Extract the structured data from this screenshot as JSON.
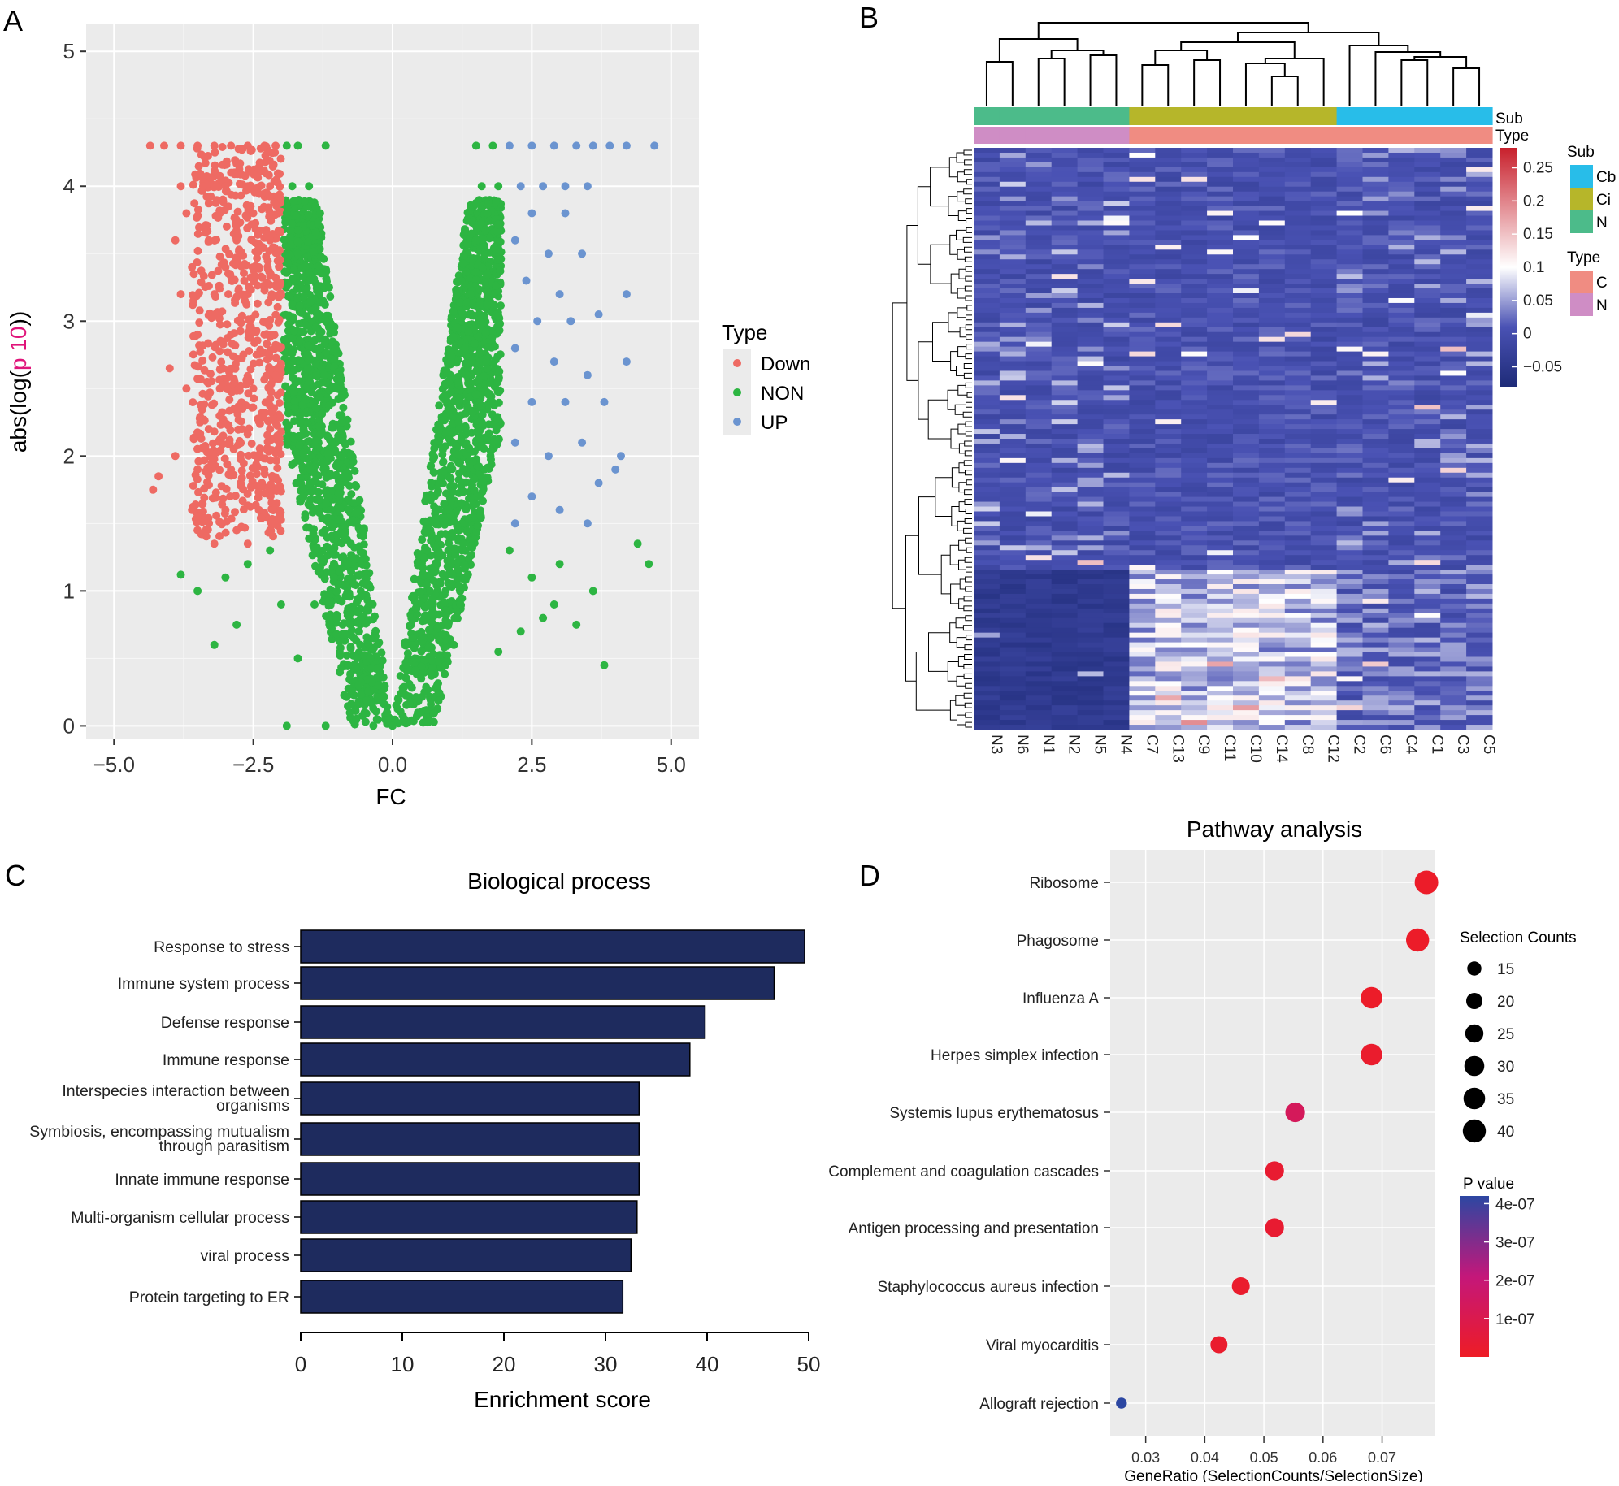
{
  "panels": {
    "a": {
      "letter": "A"
    },
    "b": {
      "letter": "B"
    },
    "c": {
      "letter": "C"
    },
    "d": {
      "letter": "D"
    }
  },
  "chart_data": [
    {
      "id": "volcano",
      "type": "scatter",
      "title": "",
      "xlabel": "FC",
      "ylabel_parts": [
        "abs(log(",
        "p 10",
        "))"
      ],
      "xlim": [
        -5.5,
        5.5
      ],
      "ylim": [
        -0.1,
        5.2
      ],
      "x_ticks": [
        -5.0,
        -2.5,
        0.0,
        2.5,
        5.0
      ],
      "x_tick_labels": [
        "−5.0",
        "−2.5",
        "0.0",
        "2.5",
        "5.0"
      ],
      "y_ticks": [
        0,
        1,
        2,
        3,
        4,
        5
      ],
      "y_tick_labels": [
        "0",
        "1",
        "2",
        "3",
        "4",
        "5"
      ],
      "background": "#ebebeb",
      "legend": {
        "title": "Type",
        "position": "right",
        "entries": [
          {
            "label": "Down",
            "color": "#ee6a63"
          },
          {
            "label": "NON",
            "color": "#2db542"
          },
          {
            "label": "UP",
            "color": "#6b94d0"
          }
        ]
      },
      "series": [
        {
          "name": "Down",
          "color": "#ee6a63",
          "points": [
            [
              -4.35,
              4.3
            ],
            [
              -4.1,
              4.3
            ],
            [
              -3.8,
              4.3
            ],
            [
              -3.5,
              4.3
            ],
            [
              -3.2,
              4.3
            ],
            [
              -2.9,
              4.3
            ],
            [
              -2.6,
              4.3
            ],
            [
              -2.3,
              4.3
            ],
            [
              -2.1,
              4.3
            ],
            [
              -3.8,
              4.0
            ],
            [
              -3.4,
              4.0
            ],
            [
              -3.0,
              4.0
            ],
            [
              -2.6,
              4.0
            ],
            [
              -2.2,
              4.0
            ],
            [
              -3.7,
              3.8
            ],
            [
              -3.1,
              3.8
            ],
            [
              -2.5,
              3.8
            ],
            [
              -2.05,
              3.8
            ],
            [
              -3.9,
              3.6
            ],
            [
              -3.3,
              3.6
            ],
            [
              -2.8,
              3.6
            ],
            [
              -2.2,
              3.6
            ],
            [
              -3.6,
              3.4
            ],
            [
              -3.0,
              3.4
            ],
            [
              -2.4,
              3.4
            ],
            [
              -3.2,
              3.2
            ],
            [
              -2.6,
              3.2
            ],
            [
              -3.8,
              3.2
            ],
            [
              -4.0,
              2.65
            ],
            [
              -3.5,
              2.9
            ],
            [
              -2.9,
              2.9
            ],
            [
              -2.3,
              2.9
            ],
            [
              -3.7,
              2.5
            ],
            [
              -3.1,
              2.5
            ],
            [
              -2.5,
              2.5
            ],
            [
              -2.1,
              2.6
            ],
            [
              -3.3,
              2.2
            ],
            [
              -2.7,
              2.2
            ],
            [
              -2.2,
              2.2
            ],
            [
              -4.2,
              1.85
            ],
            [
              -3.9,
              2.0
            ],
            [
              -3.5,
              1.9
            ],
            [
              -2.9,
              1.9
            ],
            [
              -2.3,
              1.9
            ],
            [
              -4.3,
              1.75
            ],
            [
              -3.6,
              1.6
            ],
            [
              -3.0,
              1.6
            ],
            [
              -2.4,
              1.6
            ],
            [
              -3.5,
              1.45
            ],
            [
              -2.8,
              1.45
            ],
            [
              -2.2,
              1.45
            ],
            [
              -3.2,
              1.35
            ],
            [
              -2.6,
              1.35
            ]
          ]
        },
        {
          "name": "NON",
          "color": "#2db542",
          "points": [
            [
              -1.9,
              4.3
            ],
            [
              -1.7,
              4.3
            ],
            [
              -1.2,
              4.3
            ],
            [
              -1.8,
              4.0
            ],
            [
              -1.5,
              4.0
            ],
            [
              -1.3,
              3.8
            ],
            [
              -1.9,
              3.8
            ],
            [
              -1.7,
              3.5
            ],
            [
              -1.5,
              3.3
            ],
            [
              -1.2,
              3.0
            ],
            [
              -1.0,
              2.5
            ],
            [
              -1.3,
              2.8
            ],
            [
              -1.6,
              2.2
            ],
            [
              -0.9,
              2.0
            ],
            [
              -1.1,
              1.6
            ],
            [
              -2.2,
              1.3
            ],
            [
              -2.6,
              1.2
            ],
            [
              -3.0,
              1.1
            ],
            [
              -3.5,
              1.0
            ],
            [
              -3.8,
              1.12
            ],
            [
              -2.0,
              0.9
            ],
            [
              -1.4,
              0.9
            ],
            [
              -0.8,
              1.2
            ],
            [
              -0.6,
              0.7
            ],
            [
              -0.4,
              0.5
            ],
            [
              -0.25,
              0.3
            ],
            [
              -0.1,
              0.1
            ],
            [
              -1.9,
              0.0
            ],
            [
              -1.2,
              0.0
            ],
            [
              -2.8,
              0.75
            ],
            [
              -3.2,
              0.6
            ],
            [
              -1.7,
              0.5
            ],
            [
              -0.5,
              0.1
            ],
            [
              0.0,
              0.0
            ],
            [
              0.2,
              0.05
            ],
            [
              0.1,
              0.2
            ],
            [
              0.4,
              0.5
            ],
            [
              0.6,
              0.8
            ],
            [
              0.8,
              1.2
            ],
            [
              1.0,
              1.6
            ],
            [
              1.2,
              2.2
            ],
            [
              1.3,
              2.8
            ],
            [
              1.4,
              3.2
            ],
            [
              1.5,
              3.6
            ],
            [
              1.6,
              4.0
            ],
            [
              1.8,
              4.3
            ],
            [
              1.9,
              4.0
            ],
            [
              1.7,
              3.8
            ],
            [
              1.5,
              4.3
            ],
            [
              2.1,
              1.3
            ],
            [
              2.5,
              1.1
            ],
            [
              2.9,
              0.9
            ],
            [
              3.3,
              0.75
            ],
            [
              3.8,
              0.45
            ],
            [
              4.4,
              1.35
            ],
            [
              4.6,
              1.2
            ],
            [
              3.0,
              1.2
            ],
            [
              2.3,
              0.7
            ],
            [
              1.9,
              0.55
            ],
            [
              0.5,
              0.1
            ],
            [
              0.8,
              0.3
            ],
            [
              1.1,
              0.6
            ],
            [
              2.7,
              0.8
            ],
            [
              3.6,
              1.0
            ]
          ]
        },
        {
          "name": "UP",
          "color": "#6b94d0",
          "points": [
            [
              2.1,
              4.3
            ],
            [
              2.5,
              4.3
            ],
            [
              2.9,
              4.3
            ],
            [
              3.3,
              4.3
            ],
            [
              3.6,
              4.3
            ],
            [
              3.9,
              4.3
            ],
            [
              4.2,
              4.3
            ],
            [
              4.7,
              4.3
            ],
            [
              2.3,
              4.0
            ],
            [
              2.7,
              4.0
            ],
            [
              3.1,
              4.0
            ],
            [
              3.5,
              4.0
            ],
            [
              2.5,
              3.8
            ],
            [
              3.1,
              3.8
            ],
            [
              2.2,
              3.6
            ],
            [
              2.8,
              3.5
            ],
            [
              3.4,
              3.5
            ],
            [
              2.4,
              3.3
            ],
            [
              3.0,
              3.2
            ],
            [
              2.6,
              3.0
            ],
            [
              3.2,
              3.0
            ],
            [
              3.7,
              3.05
            ],
            [
              2.2,
              2.8
            ],
            [
              2.9,
              2.7
            ],
            [
              3.5,
              2.6
            ],
            [
              4.2,
              3.2
            ],
            [
              4.2,
              2.7
            ],
            [
              2.5,
              2.4
            ],
            [
              3.1,
              2.4
            ],
            [
              3.8,
              2.4
            ],
            [
              2.2,
              2.1
            ],
            [
              2.8,
              2.0
            ],
            [
              3.4,
              2.1
            ],
            [
              4.1,
              2.0
            ],
            [
              4.0,
              1.9
            ],
            [
              2.5,
              1.7
            ],
            [
              3.0,
              1.6
            ],
            [
              3.5,
              1.5
            ],
            [
              2.2,
              1.5
            ],
            [
              3.7,
              1.8
            ]
          ]
        }
      ]
    },
    {
      "id": "heatmap",
      "type": "heatmap",
      "title": "",
      "columns": [
        "N3",
        "N6",
        "N1",
        "N2",
        "N5",
        "N4",
        "C7",
        "C13",
        "C9",
        "C11",
        "C10",
        "C14",
        "C8",
        "C12",
        "C2",
        "C6",
        "C4",
        "C1",
        "C3",
        "C5"
      ],
      "sub_annotation": [
        "N",
        "N",
        "N",
        "N",
        "N",
        "N",
        "Ci",
        "Ci",
        "Ci",
        "Ci",
        "Ci",
        "Ci",
        "Ci",
        "Ci",
        "Cb",
        "Cb",
        "Cb",
        "Cb",
        "Cb",
        "Cb"
      ],
      "type_annotation": [
        "N",
        "N",
        "N",
        "N",
        "N",
        "N",
        "C",
        "C",
        "C",
        "C",
        "C",
        "C",
        "C",
        "C",
        "C",
        "C",
        "C",
        "C",
        "C",
        "C"
      ],
      "row_annotation_labels": [
        "Sub",
        "Type"
      ],
      "colorbar": {
        "min": -0.08,
        "max": 0.28,
        "ticks": [
          -0.05,
          0,
          0.05,
          0.1,
          0.15,
          0.2,
          0.25
        ],
        "tick_labels": [
          "−0.05",
          "0",
          "0.05",
          "0.1",
          "0.15",
          "0.2",
          "0.25"
        ],
        "low": "#1e2b78",
        "mid_low": "#4a52b4",
        "mid": "#ffffff",
        "high": "#c8202c"
      },
      "legend_sub": {
        "title": "Sub",
        "entries": [
          {
            "label": "Cb",
            "color": "#28bde9"
          },
          {
            "label": "Ci",
            "color": "#b6b62a"
          },
          {
            "label": "N",
            "color": "#4cbb8a"
          }
        ]
      },
      "legend_type": {
        "title": "Type",
        "entries": [
          {
            "label": "C",
            "color": "#f08c82"
          },
          {
            "label": "N",
            "color": "#cf8dc5"
          }
        ]
      }
    },
    {
      "id": "biological-process",
      "type": "bar",
      "orientation": "horizontal",
      "title": "Biological process",
      "xlabel": "Enrichment score",
      "ylabel": "",
      "xlim": [
        0,
        50
      ],
      "x_ticks": [
        0,
        10,
        20,
        30,
        40,
        50
      ],
      "bar_color": "#1e2b5e",
      "categories": [
        [
          "Response to stress"
        ],
        [
          "Immune system process"
        ],
        [
          "Defense response"
        ],
        [
          "Immune response"
        ],
        [
          "Interspecies interaction between",
          "organisms"
        ],
        [
          "Symbiosis, encompassing mutualism",
          "through parasitism"
        ],
        [
          "Innate immune response"
        ],
        [
          "Multi-organism cellular process"
        ],
        [
          "viral process"
        ],
        [
          "Protein targeting to ER"
        ]
      ],
      "values": [
        49.6,
        46.6,
        39.8,
        38.3,
        33.3,
        33.3,
        33.3,
        33.1,
        32.5,
        31.7
      ]
    },
    {
      "id": "pathway-analysis",
      "type": "scatter",
      "title": "Pathway analysis",
      "xlabel": "GeneRatio (SelectionCounts/SelectionSize)",
      "ylabel": "",
      "xlim": [
        0.024,
        0.079
      ],
      "x_ticks": [
        0.03,
        0.04,
        0.05,
        0.06,
        0.07
      ],
      "x_tick_labels": [
        "0.03",
        "0.04",
        "0.05",
        "0.06",
        "0.07"
      ],
      "background": "#ebebeb",
      "categories": [
        "Ribosome",
        "Phagosome",
        "Influenza A",
        "Herpes simplex infection",
        "Systemis lupus erythematosus",
        "Complement and coagulation cascades",
        "Antigen processing and presentation",
        "Staphylococcus aureus infection",
        "Viral myocarditis",
        "Allograft rejection"
      ],
      "x": [
        0.0775,
        0.076,
        0.0682,
        0.0682,
        0.0553,
        0.0518,
        0.0518,
        0.0461,
        0.0424,
        0.0259
      ],
      "counts": [
        42,
        40,
        35,
        35,
        29,
        27,
        27,
        24,
        22,
        9
      ],
      "p_values": [
        1e-08,
        1e-08,
        1e-08,
        2e-08,
        1.3e-07,
        3e-08,
        3e-08,
        2e-08,
        2e-08,
        4.2e-07
      ],
      "size_legend": {
        "title": "Selection Counts",
        "values": [
          15,
          20,
          25,
          30,
          35,
          40
        ]
      },
      "color_legend": {
        "title": "P value",
        "min": 0,
        "max": 4.2e-07,
        "ticks": [
          1e-07,
          2e-07,
          3e-07,
          4e-07
        ],
        "tick_labels": [
          "1e-07",
          "2e-07",
          "3e-07",
          "4e-07"
        ],
        "low_color": "#ee1c25",
        "high_color": "#2c47a2"
      }
    }
  ]
}
